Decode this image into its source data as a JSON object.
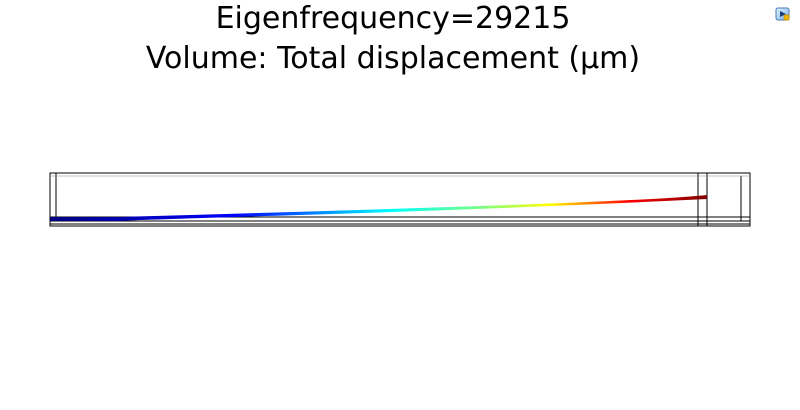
{
  "plot": {
    "title_line1": "Eigenfrequency=29215",
    "title_line2": "Volume: Total displacement (µm)",
    "colormap": [
      "#00007f",
      "#0000ff",
      "#00ffff",
      "#7fff7f",
      "#ffff00",
      "#ff0000",
      "#7f0000"
    ]
  },
  "toolbar": {
    "corner_icon": "graphics-window-icon"
  }
}
